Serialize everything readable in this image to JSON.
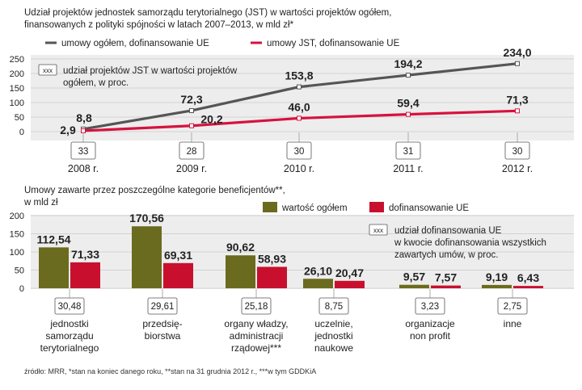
{
  "chart_data": [
    {
      "type": "line",
      "title": "Udział projektów jednostek samorządu terytorialnego (JST) w wartości projektów ogółem, finansowanych z polityki spójności w latach 2007–2013, w mld zł*",
      "title_lines": [
        "Udział projektów jednostek samorządu terytorialnego (JST) w wartości projektów ogółem,",
        "finansowanych z polityki spójności w latach 2007–2013, w mld zł*"
      ],
      "categories": [
        "2008 r.",
        "2009 r.",
        "2010 r.",
        "2011 r.",
        "2012 r."
      ],
      "ylim": [
        0,
        250
      ],
      "yticks": [
        0,
        50,
        100,
        150,
        200,
        250
      ],
      "grid": true,
      "legend_position": "top",
      "series": [
        {
          "name": "umowy ogółem, dofinansowanie UE",
          "color": "#555555",
          "values": [
            8.8,
            72.3,
            153.8,
            194.2,
            234.0
          ],
          "labels": [
            "8,8",
            "72,3",
            "153,8",
            "194,2",
            "234,0"
          ]
        },
        {
          "name": "umowy JST, dofinansowanie UE",
          "color": "#d6123f",
          "values": [
            2.9,
            20.2,
            46.0,
            59.4,
            71.3
          ],
          "labels": [
            "2,9",
            "20,2",
            "46,0",
            "59,4",
            "71,3"
          ]
        }
      ],
      "share_key": "xxx",
      "share_legend_lines": [
        "udział projektów JST w wartości projektów",
        "ogółem, w proc."
      ],
      "share_values": [
        "33",
        "28",
        "30",
        "31",
        "30"
      ]
    },
    {
      "type": "bar",
      "title": "Umowy zawarte przez poszczególne kategorie beneficjentów**, w mld zł",
      "title_lines": [
        "Umowy zawarte przez poszczególne kategorie beneficjentów**,",
        "w mld zł"
      ],
      "ylim": [
        0,
        200
      ],
      "yticks": [
        0,
        50,
        100,
        150,
        200
      ],
      "grid": true,
      "legend_position": "top-right",
      "categories": [
        [
          "jednostki",
          "samorządu",
          "terytorialnego"
        ],
        [
          "przedsię-",
          "biorstwa"
        ],
        [
          "organy władzy,",
          "administracji",
          "rządowej***"
        ],
        [
          "uczelnie,",
          "jednostki",
          "naukowe"
        ],
        [
          "organizacje",
          "non profit"
        ],
        [
          "inne"
        ]
      ],
      "series": [
        {
          "name": "wartość ogółem",
          "color": "#6b6b1f",
          "values": [
            112.54,
            170.56,
            90.62,
            26.1,
            9.57,
            9.19
          ],
          "labels": [
            "112,54",
            "170,56",
            "90,62",
            "26,10",
            "9,57",
            "9,19"
          ]
        },
        {
          "name": "dofinansowanie UE",
          "color": "#c8102e",
          "values": [
            71.33,
            69.31,
            58.93,
            20.47,
            7.57,
            6.43
          ],
          "labels": [
            "71,33",
            "69,31",
            "58,93",
            "20,47",
            "7,57",
            "6,43"
          ]
        }
      ],
      "share_key": "xxx",
      "share_legend_lines": [
        "udział dofinansowania UE",
        "w kwocie dofinansowania wszystkich",
        "zawartych umów, w proc."
      ],
      "share_values": [
        "30,48",
        "29,61",
        "25,18",
        "8,75",
        "3,23",
        "2,75"
      ]
    }
  ],
  "footnote": "źródło: MRR, *stan na koniec danego roku, **stan na 31 grudnia 2012 r., ***w tym GDDKiA"
}
